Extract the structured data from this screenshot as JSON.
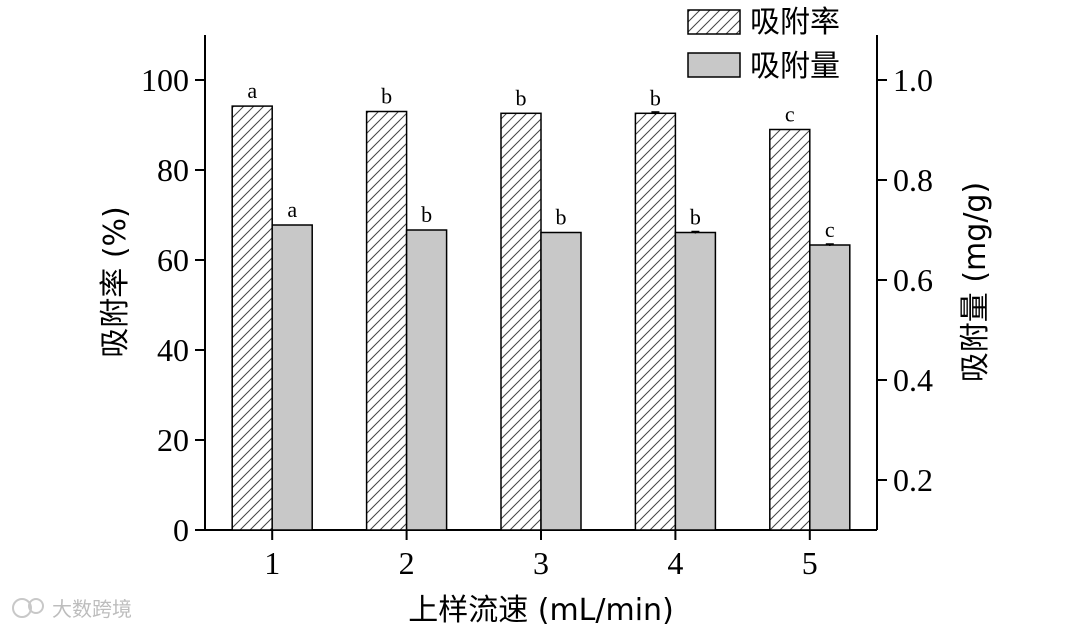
{
  "chart_data": {
    "type": "bar",
    "categories": [
      "1",
      "2",
      "3",
      "4",
      "5"
    ],
    "series": [
      {
        "name": "吸附率",
        "axis": "left",
        "fill": "hatched",
        "values": [
          94.2,
          93.0,
          92.6,
          92.6,
          89.0
        ],
        "errors": [
          0,
          0,
          0,
          0.3,
          0
        ],
        "labels": [
          "a",
          "b",
          "b",
          "b",
          "c"
        ]
      },
      {
        "name": "吸附量",
        "axis": "right",
        "fill": "#c8c8c8",
        "values": [
          0.71,
          0.7,
          0.695,
          0.695,
          0.67
        ],
        "errors": [
          0,
          0,
          0,
          0.002,
          0.002
        ],
        "labels": [
          "a",
          "b",
          "b",
          "b",
          "c"
        ]
      }
    ],
    "xlabel": "上样流速 (mL/min)",
    "ylabel_left": "吸附率 (%)",
    "ylabel_right": "吸附量 (mg/g)",
    "ylim_left": [
      0,
      110
    ],
    "yticks_left": [
      "0",
      "20",
      "40",
      "60",
      "80",
      "100"
    ],
    "ylim_right": [
      0.1,
      1.1
    ],
    "yticks_right": [
      "0.2",
      "0.4",
      "0.6",
      "0.8",
      "1.0"
    ],
    "legend": "top-right",
    "grid": false
  },
  "watermark": "大数跨境",
  "colors": {
    "bar_gray": "#c8c8c8",
    "axis": "#000000"
  }
}
